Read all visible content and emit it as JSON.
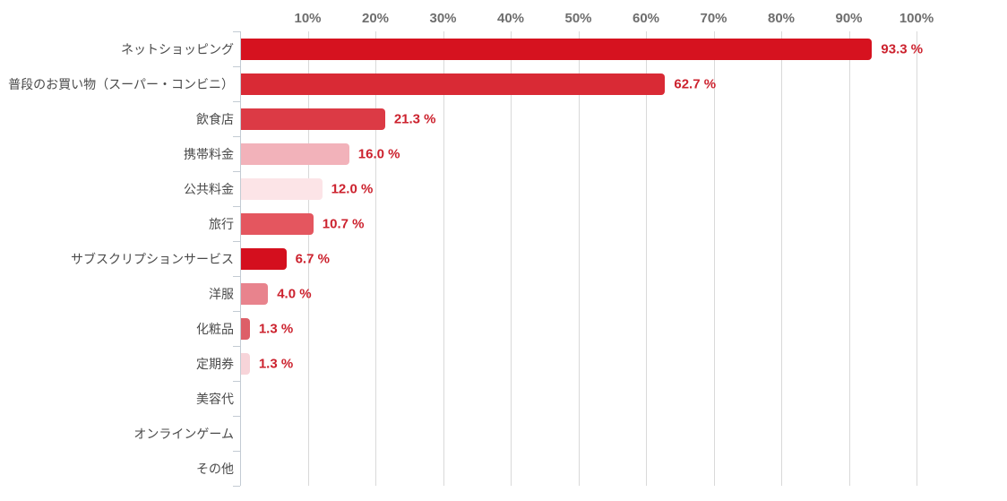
{
  "chart_data": {
    "type": "bar",
    "orientation": "horizontal",
    "title": "",
    "xlabel": "",
    "ylabel": "",
    "categories": [
      "ネットショッピング",
      "普段のお買い物（スーパー・コンビニ）",
      "飲食店",
      "携帯料金",
      "公共料金",
      "旅行",
      "サブスクリプションサービス",
      "洋服",
      "化粧品",
      "定期券",
      "美容代",
      "オンラインゲーム",
      "その他"
    ],
    "values": [
      93.3,
      62.7,
      21.3,
      16.0,
      12.0,
      10.7,
      6.7,
      4.0,
      1.3,
      1.3,
      0,
      0,
      0
    ],
    "value_labels": [
      "93.3 %",
      "62.7 %",
      "21.3 %",
      "16.0 %",
      "12.0 %",
      "10.7 %",
      "6.7 %",
      "4.0 %",
      "1.3 %",
      "1.3 %",
      "",
      "",
      ""
    ],
    "bar_colors": [
      "#d6121f",
      "#d92a35",
      "#dc3a45",
      "#f2b2ba",
      "#fce4e7",
      "#e4565f",
      "#d40f1e",
      "#e8838d",
      "#dd5f68",
      "#f7d4d9",
      "",
      "",
      ""
    ],
    "x_axis": {
      "position": "top",
      "min": 0,
      "max": 100,
      "tick_labels": [
        "10%",
        "20%",
        "30%",
        "40%",
        "50%",
        "60%",
        "70%",
        "80%",
        "90%",
        "100%"
      ],
      "grid": true
    },
    "legend": "none"
  },
  "colors": {
    "background": "#ffffff",
    "gridline": "#d9d9d9",
    "axis_line": "#c3cbd3",
    "x_tick_label": "#6e6e6e",
    "category_label": "#4a4a4a",
    "value_label": "#cc222e"
  }
}
